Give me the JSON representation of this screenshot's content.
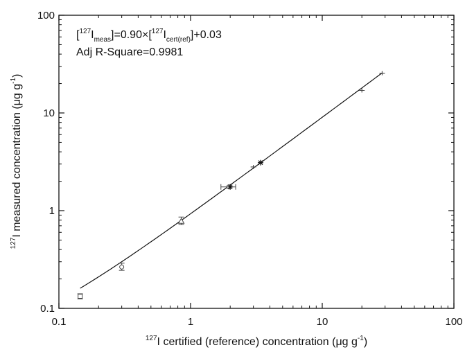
{
  "chart_data": {
    "type": "scatter",
    "x_scale": "log",
    "y_scale": "log",
    "xlim": [
      0.1,
      100
    ],
    "ylim": [
      0.1,
      100
    ],
    "x_ticks": [
      "0.1",
      "1",
      "10",
      "100"
    ],
    "y_ticks": [
      "0.1",
      "1",
      "10",
      "100"
    ],
    "xlabel": {
      "sup": "127",
      "text": "I certified (reference) concentration (μg g",
      "unit_sup": "-1",
      "close": ")"
    },
    "ylabel": {
      "sup": "127",
      "text": "I measured concentration (μg g",
      "unit_sup": "-1",
      "close": ")"
    },
    "annotation": {
      "equation": {
        "open": "[",
        "sup1": "127",
        "i1": "I",
        "sub1": "meas",
        "mid": "]=0.90×[",
        "sup2": "127",
        "i2": "I",
        "sub2": "cert(ref)",
        "tail": "]+0.03"
      },
      "r_square": "Adj R-Square=0.9981"
    },
    "fit": {
      "slope": 0.9,
      "intercept": 0.03,
      "x_range": [
        0.145,
        28.5
      ]
    },
    "points": [
      {
        "x": 0.145,
        "y": 0.133,
        "y_err": [
          0.125,
          0.141
        ],
        "marker": "open-square"
      },
      {
        "x": 0.3,
        "y": 0.265,
        "y_err": [
          0.245,
          0.29
        ],
        "marker": "open-circle"
      },
      {
        "x": 0.85,
        "y": 0.78,
        "y_err": [
          0.72,
          0.86
        ],
        "marker": "open-triangle"
      },
      {
        "x": 1.95,
        "y": 1.75,
        "x_err": [
          1.7,
          2.2
        ],
        "marker": "open-circle"
      },
      {
        "x": 2.0,
        "y": 1.75,
        "marker": "star"
      },
      {
        "x": 3.0,
        "y": 2.8,
        "marker": "plus"
      },
      {
        "x": 3.4,
        "y": 3.1,
        "marker": "star"
      },
      {
        "x": 20.0,
        "y": 17.0,
        "marker": "plus"
      },
      {
        "x": 28.5,
        "y": 25.5,
        "marker": "plus"
      }
    ]
  }
}
